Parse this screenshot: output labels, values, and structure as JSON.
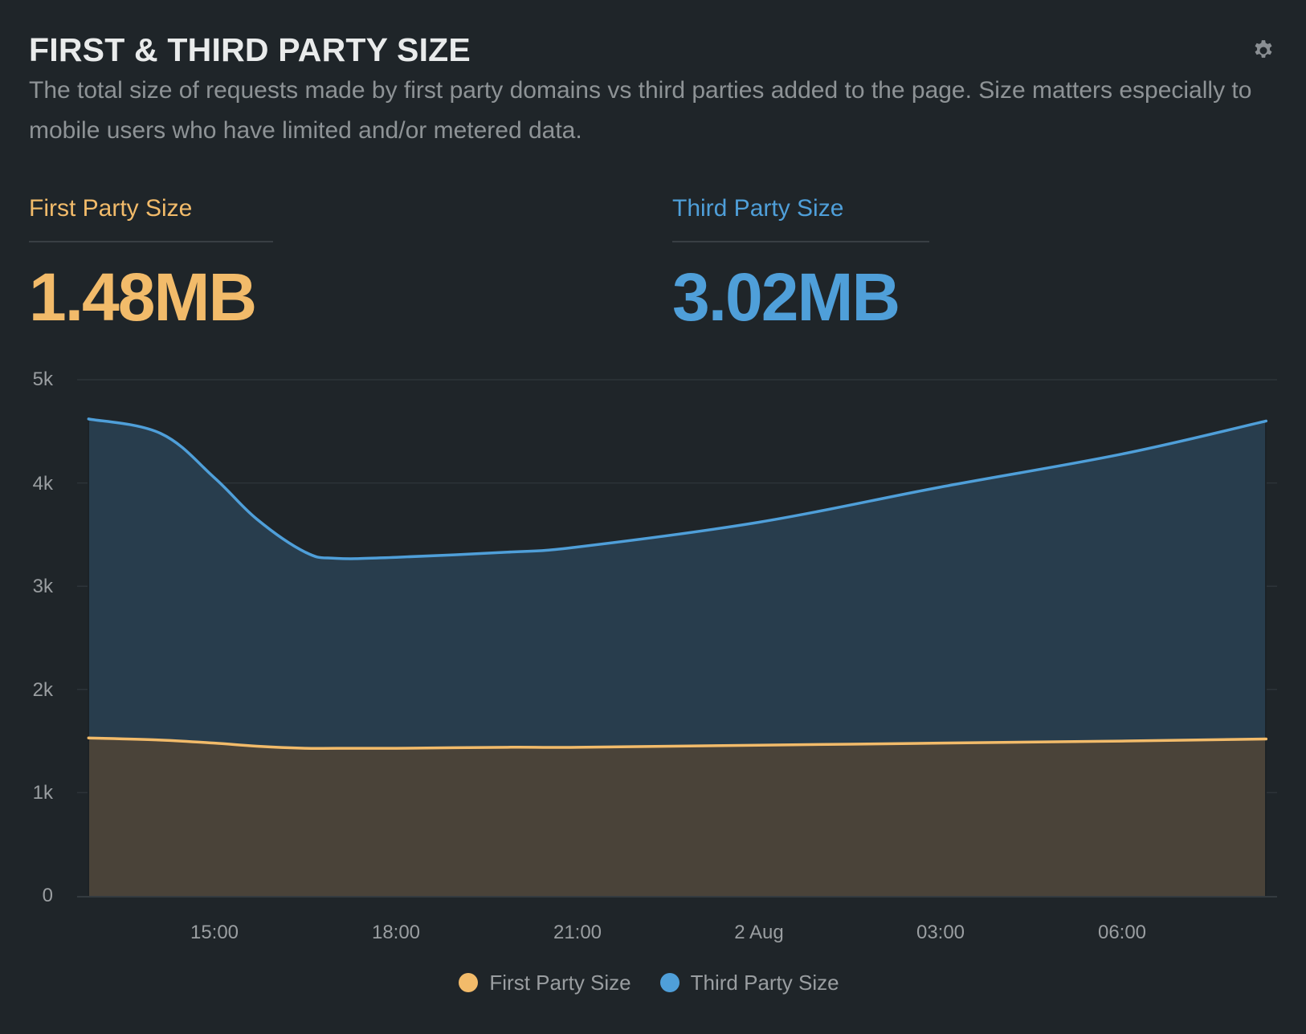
{
  "header": {
    "title": "FIRST & THIRD PARTY SIZE",
    "description": "The total size of requests made by first party domains vs third parties added to the page. Size matters especially to mobile users who have limited and/or metered data.",
    "settings_icon": "gear-icon"
  },
  "stats": {
    "first_party": {
      "label": "First Party Size",
      "value": "1.48MB",
      "color": "#f2bb6a"
    },
    "third_party": {
      "label": "Third Party Size",
      "value": "3.02MB",
      "color": "#4f9fd9"
    }
  },
  "colors": {
    "background": "#1f2529",
    "first_party_line": "#f2bb6a",
    "first_party_fill": "#4a4339",
    "third_party_line": "#4f9fd9",
    "third_party_fill": "#283d4d",
    "grid": "#2d3439",
    "axis_text": "#9a9ea1"
  },
  "legend": [
    {
      "label": "First Party Size",
      "color": "#f2bb6a"
    },
    {
      "label": "Third Party Size",
      "color": "#4f9fd9"
    }
  ],
  "chart_data": {
    "type": "area",
    "title": "FIRST & THIRD PARTY SIZE",
    "xlabel": "",
    "ylabel": "",
    "ylim": [
      0,
      5000
    ],
    "yticks": [
      "0",
      "1k",
      "2k",
      "3k",
      "4k",
      "5k"
    ],
    "xticks": [
      "15:00",
      "18:00",
      "21:00",
      "2 Aug",
      "03:00",
      "06:00"
    ],
    "grid": true,
    "legend_position": "bottom",
    "x": [
      "12:55",
      "14:05",
      "15:00",
      "15:40",
      "16:30",
      "17:00",
      "18:00",
      "19:50",
      "21:00",
      "2 Aug 00:00",
      "03:00",
      "06:00",
      "08:20"
    ],
    "x_hours": [
      -2.08,
      -0.89,
      0,
      0.7,
      1.5,
      2.01,
      3.0,
      4.85,
      6.0,
      9.0,
      12.0,
      15.0,
      17.38
    ],
    "series": [
      {
        "name": "First Party Size",
        "color": "#f2bb6a",
        "values": [
          1530,
          1510,
          1480,
          1450,
          1430,
          1430,
          1430,
          1440,
          1440,
          1460,
          1480,
          1500,
          1520
        ]
      },
      {
        "name": "Third Party Size",
        "color": "#4f9fd9",
        "values": [
          4620,
          4480,
          4050,
          3650,
          3330,
          3270,
          3280,
          3330,
          3380,
          3620,
          3960,
          4280,
          4600
        ]
      }
    ]
  }
}
